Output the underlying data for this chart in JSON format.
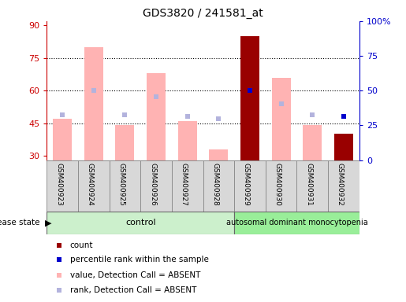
{
  "title": "GDS3820 / 241581_at",
  "samples": [
    "GSM400923",
    "GSM400924",
    "GSM400925",
    "GSM400926",
    "GSM400927",
    "GSM400928",
    "GSM400929",
    "GSM400930",
    "GSM400931",
    "GSM400932"
  ],
  "n_control": 6,
  "n_disease": 4,
  "pink_bar_heights": [
    47.0,
    80.0,
    44.0,
    68.0,
    46.0,
    33.0,
    0,
    66.0,
    44.0,
    0
  ],
  "dark_red_bar_heights": [
    0,
    0,
    0,
    0,
    0,
    0,
    85.0,
    0,
    0,
    40.0
  ],
  "light_blue_square_y": [
    49.0,
    60.0,
    49.0,
    57.0,
    48.0,
    47.0,
    0,
    54.0,
    49.0,
    0
  ],
  "dark_blue_square_y": [
    0,
    0,
    0,
    0,
    0,
    0,
    60.0,
    0,
    0,
    48.0
  ],
  "ylim_left": [
    28,
    92
  ],
  "ylim_right": [
    0,
    100
  ],
  "yticks_left": [
    30,
    45,
    60,
    75,
    90
  ],
  "yticks_right": [
    0,
    25,
    50,
    75,
    100
  ],
  "ytick_labels_right": [
    "0",
    "25",
    "50",
    "75",
    "100%"
  ],
  "left_axis_color": "#cc0000",
  "right_axis_color": "#0000cc",
  "pink_bar_color": "#ffb3b3",
  "dark_red_bar_color": "#990000",
  "light_blue_sq_color": "#b3b3dd",
  "dark_blue_sq_color": "#0000cc",
  "grid_color": "#000000",
  "control_label": "control",
  "disease_label": "autosomal dominant monocytopenia",
  "disease_state_label": "disease state",
  "control_band_color": "#ccf0cc",
  "disease_band_color": "#99ee99",
  "sample_box_color": "#d8d8d8",
  "legend_items": [
    {
      "label": "count",
      "color": "#990000"
    },
    {
      "label": "percentile rank within the sample",
      "color": "#0000cc"
    },
    {
      "label": "value, Detection Call = ABSENT",
      "color": "#ffb3b3"
    },
    {
      "label": "rank, Detection Call = ABSENT",
      "color": "#b3b3dd"
    }
  ],
  "bar_bottom": 28,
  "bar_width": 0.6
}
